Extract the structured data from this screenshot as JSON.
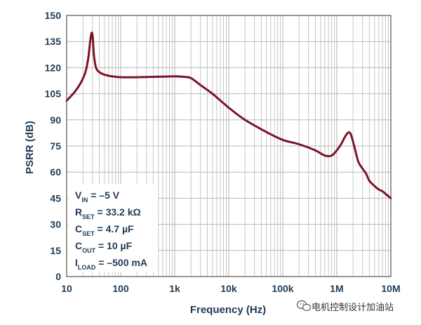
{
  "chart_data": {
    "type": "line",
    "xlabel": "Frequency (Hz)",
    "ylabel": "PSRR (dB)",
    "xscale": "log",
    "xlim": [
      10,
      10000000
    ],
    "ylim": [
      0,
      150
    ],
    "x_ticks": [
      10,
      100,
      1000,
      10000,
      100000,
      1000000,
      10000000
    ],
    "x_tick_labels": [
      "10",
      "100",
      "1k",
      "10k",
      "100k",
      "1M",
      "10M"
    ],
    "y_ticks": [
      0,
      15,
      30,
      45,
      60,
      75,
      90,
      105,
      120,
      135,
      150
    ],
    "y_tick_labels": [
      "0",
      "15",
      "30",
      "45",
      "60",
      "75",
      "90",
      "105",
      "120",
      "135",
      "150"
    ],
    "grid": true,
    "colors": {
      "line": "#7b1428",
      "grid": "#b8b8b8",
      "text": "#1f3b57",
      "frame": "#555555"
    },
    "series": [
      {
        "x": [
          10,
          14,
          18,
          22,
          25,
          27,
          28.5,
          29.5,
          30.5,
          32,
          35,
          40,
          50,
          70,
          100,
          200,
          500,
          1000,
          1500,
          2000,
          3000,
          5000,
          10000,
          20000,
          50000,
          100000,
          200000,
          400000,
          600000,
          800000,
          1000000,
          1200000,
          1400000,
          1600000,
          1800000,
          2100000,
          2500000,
          3000000,
          3500000,
          4000000,
          5000000,
          6000000,
          7000000,
          8000000,
          10000000
        ],
        "y": [
          101,
          106,
          111,
          117,
          125,
          134,
          139,
          140,
          137,
          127,
          120,
          117.5,
          116,
          115,
          114.5,
          114.5,
          114.8,
          115,
          114.7,
          114,
          110,
          105,
          97,
          90,
          83,
          78.5,
          76,
          72.5,
          69.5,
          69.5,
          72.5,
          76,
          80,
          82.5,
          82,
          75,
          66,
          62,
          59,
          55,
          52,
          50,
          49,
          47.5,
          45
        ]
      }
    ],
    "annotations": [
      {
        "main": "V",
        "sub": "IN",
        "rest": " = –5 V"
      },
      {
        "main": "R",
        "sub": "SET",
        "rest": " = 33.2 kΩ"
      },
      {
        "main": "C",
        "sub": "SET",
        "rest": " = 4.7 µF"
      },
      {
        "main": "C",
        "sub": "OUT",
        "rest": " = 10 µF"
      },
      {
        "main": "I",
        "sub": "LOAD",
        "rest": " = –500 mA"
      }
    ]
  },
  "watermark": {
    "text": "电机控制设计加油站",
    "icon": "wechat-icon"
  }
}
